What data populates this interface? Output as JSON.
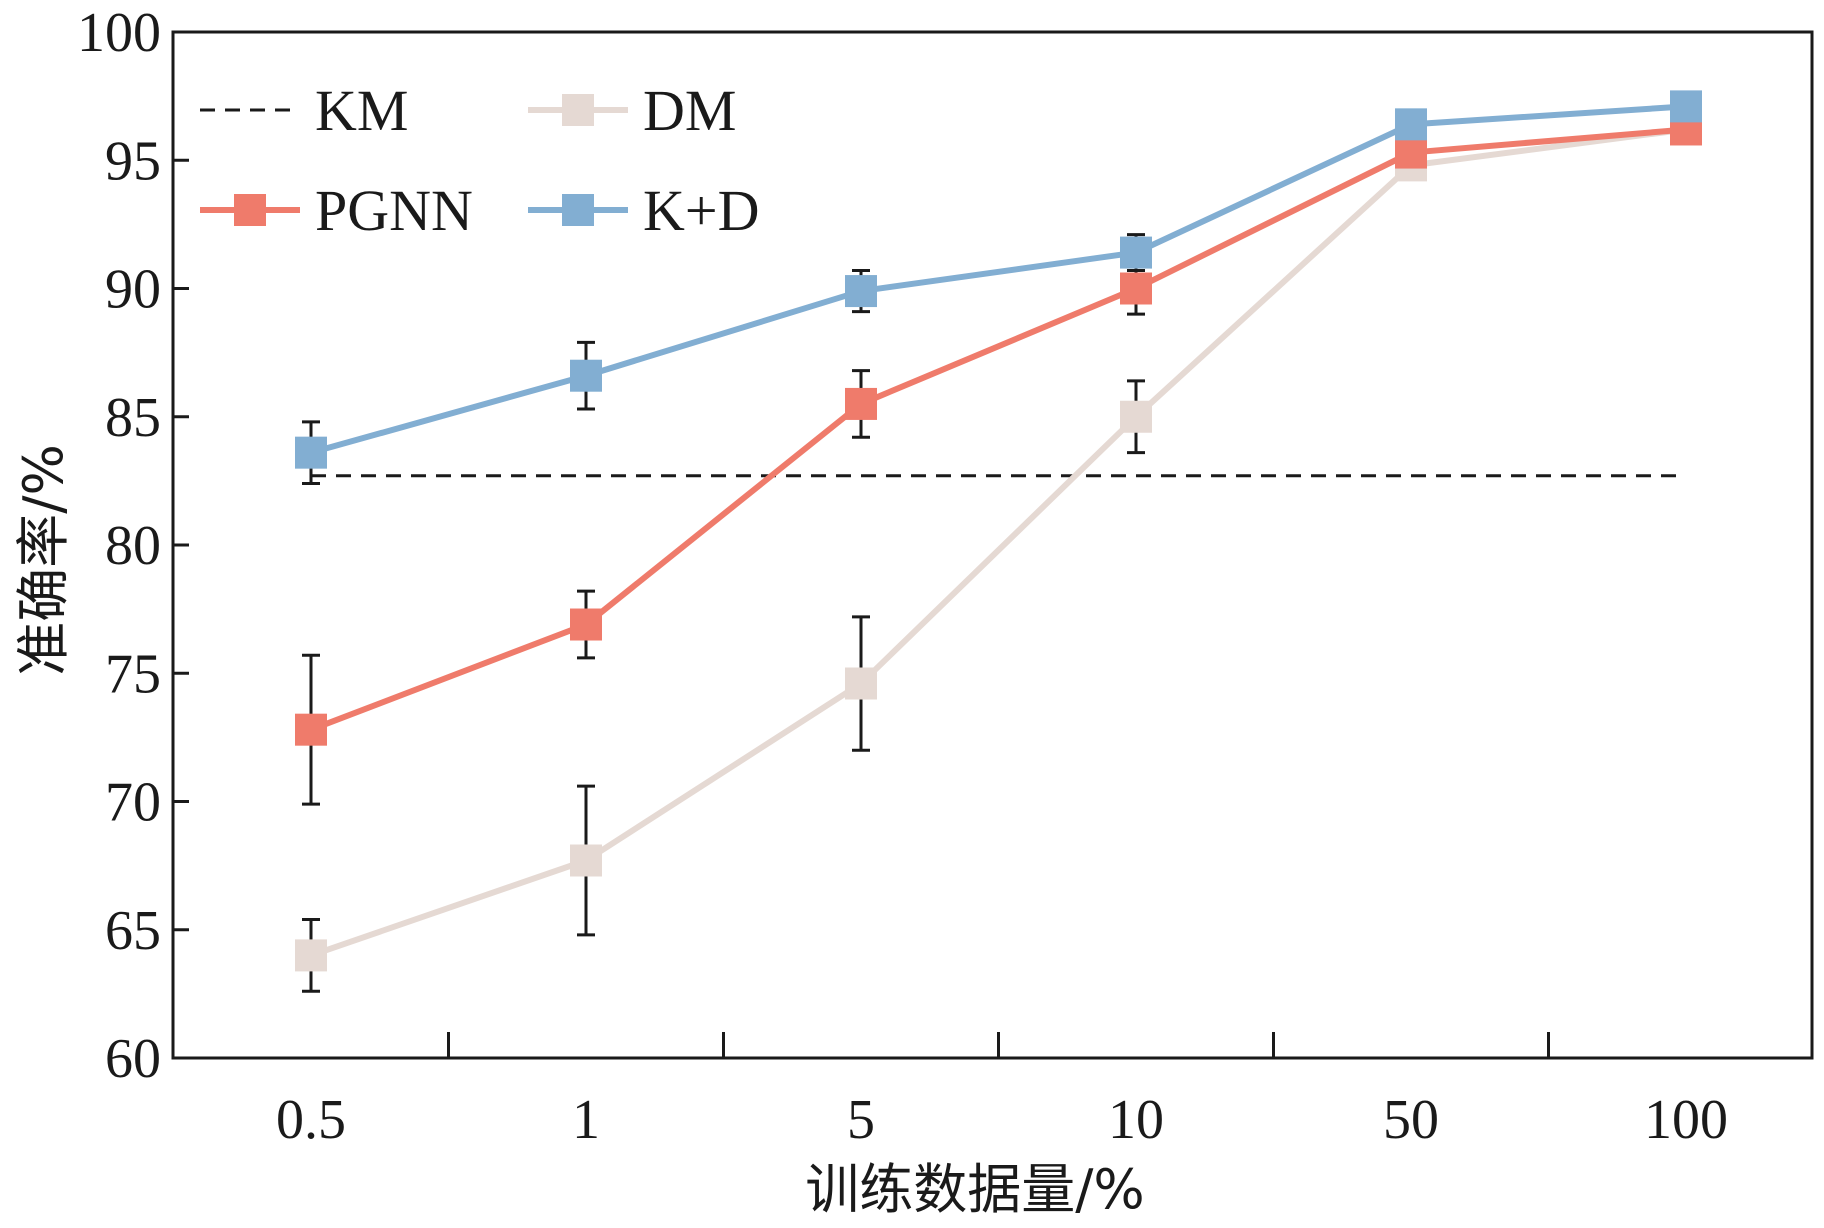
{
  "chart_data": {
    "type": "line",
    "xlabel": "训练数据量/%",
    "ylabel": "准确率/%",
    "categories": [
      "0.5",
      "1",
      "5",
      "10",
      "50",
      "100"
    ],
    "ylim": [
      60,
      100
    ],
    "yticks": [
      "60",
      "65",
      "70",
      "75",
      "80",
      "85",
      "90",
      "95",
      "100"
    ],
    "grid": false,
    "legend_position": "top-left",
    "series": [
      {
        "name": "KM",
        "style": "dashed",
        "color": "#1a1a1a",
        "values": [
          82.7,
          82.7,
          82.7,
          82.7,
          82.7,
          82.7
        ],
        "error": null
      },
      {
        "name": "DM",
        "style": "solid-square",
        "color": "#e5d9d3",
        "values": [
          64.0,
          67.7,
          74.6,
          85.0,
          94.8,
          96.2
        ],
        "error": [
          1.4,
          2.9,
          2.6,
          1.4,
          null,
          null
        ]
      },
      {
        "name": "PGNN",
        "style": "solid-square",
        "color": "#ef7b6b",
        "values": [
          72.8,
          76.9,
          85.5,
          90.0,
          95.3,
          96.2
        ],
        "error": [
          2.9,
          1.3,
          1.3,
          1.0,
          null,
          null
        ]
      },
      {
        "name": "K+D",
        "style": "solid-square",
        "color": "#82aed2",
        "values": [
          83.6,
          86.6,
          89.9,
          91.4,
          96.4,
          97.1
        ],
        "error": [
          1.2,
          1.3,
          0.8,
          0.7,
          null,
          null
        ]
      }
    ],
    "legend_order": [
      "KM",
      "DM",
      "PGNN",
      "K+D"
    ]
  }
}
